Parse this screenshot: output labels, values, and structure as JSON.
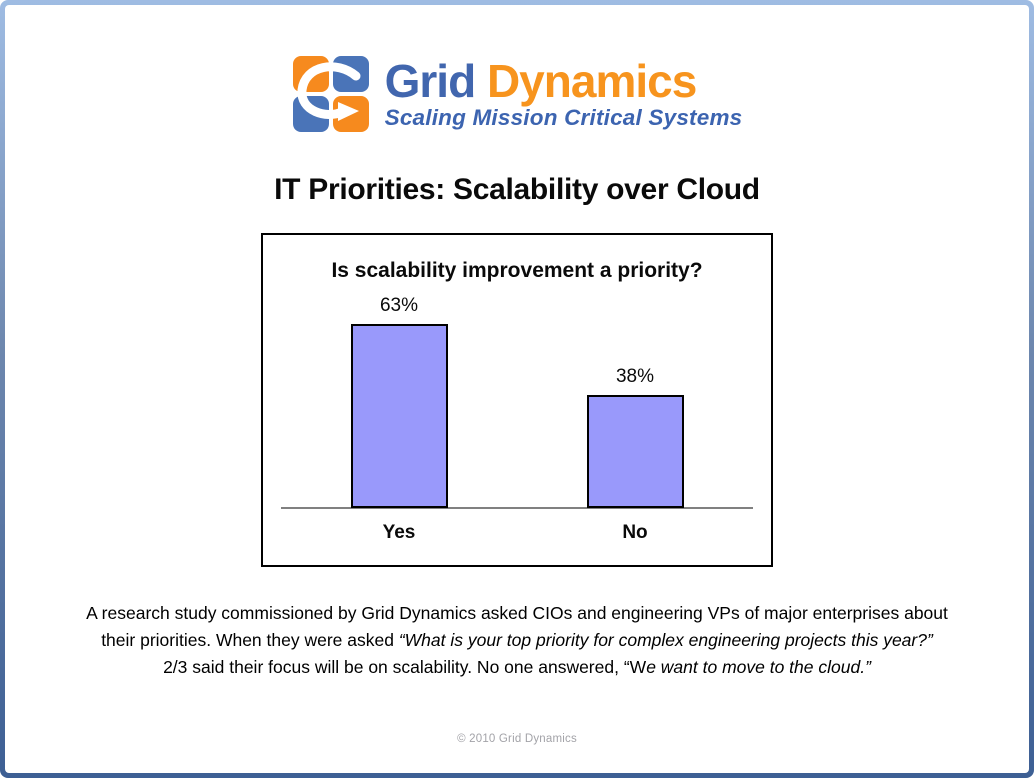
{
  "logo": {
    "name_part1": "Grid",
    "name_part2": "Dynamics",
    "tagline": "Scaling Mission Critical Systems",
    "colors": {
      "name_blue": "#4166ae",
      "name_orange": "#f7941e",
      "tagline_blue": "#3c64b0",
      "square_orange": "#f68a1e",
      "square_blue": "#4a74b8"
    }
  },
  "title": "IT Priorities: Scalability over Cloud",
  "chart_data": {
    "type": "bar",
    "title": "Is scalability improvement a priority?",
    "categories": [
      "Yes",
      "No"
    ],
    "values": [
      63,
      38
    ],
    "value_labels": [
      "63%",
      "38%"
    ],
    "unit": "%",
    "ylim": [
      0,
      70
    ],
    "grid": false,
    "legend": "none",
    "bar_fill": "#9999fb",
    "bar_border": "#000000",
    "axis_color": "#808080"
  },
  "description": {
    "lines": [
      {
        "segments": [
          {
            "t": "A research study commissioned by Grid Dynamics asked CIOs and engineering VPs of major enterprises about",
            "i": false
          }
        ]
      },
      {
        "segments": [
          {
            "t": "their priorities. When they were asked ",
            "i": false
          },
          {
            "t": "“What is your top priority for complex engineering projects this year?”",
            "i": true
          }
        ]
      },
      {
        "segments": [
          {
            "t": "2/3 said their focus will be on scalability. No one answered, “W",
            "i": false
          },
          {
            "t": "e want to move to the cloud.”",
            "i": true
          }
        ]
      }
    ]
  },
  "footer": {
    "copyright": "© 2010 Grid Dynamics"
  }
}
